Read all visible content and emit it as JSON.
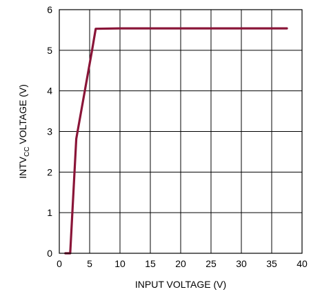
{
  "chart_data": {
    "type": "line",
    "title": "",
    "xlabel": "INPUT VOLTAGE (V)",
    "ylabel": {
      "prefix": "INTV",
      "subscript": "CC",
      "suffix": " VOLTAGE (V)"
    },
    "xlim": [
      0,
      40
    ],
    "ylim": [
      0,
      6
    ],
    "xticks": [
      "0",
      "5",
      "10",
      "15",
      "20",
      "25",
      "30",
      "35",
      "40"
    ],
    "yticks": [
      "0",
      "1",
      "2",
      "3",
      "4",
      "5",
      "6"
    ],
    "grid": true,
    "series": [
      {
        "color": "#8a1538",
        "x": [
          1.0,
          1.8,
          2.8,
          5.4,
          6.0,
          10,
          20,
          30,
          37.5
        ],
        "y": [
          0,
          0,
          2.82,
          5.0,
          5.53,
          5.54,
          5.54,
          5.54,
          5.54
        ]
      }
    ]
  }
}
